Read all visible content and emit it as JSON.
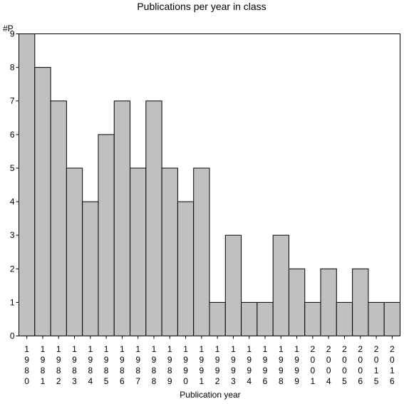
{
  "chart_data": {
    "type": "bar",
    "title": "Publications per year in class",
    "ylabel": "#P",
    "xlabel": "Publication year",
    "categories": [
      "1980",
      "1981",
      "1982",
      "1983",
      "1984",
      "1985",
      "1986",
      "1987",
      "1988",
      "1989",
      "1990",
      "1991",
      "1992",
      "1993",
      "1994",
      "1996",
      "1998",
      "1999",
      "2001",
      "2004",
      "2005",
      "2006",
      "2015",
      "2016"
    ],
    "values": [
      9,
      8,
      7,
      5,
      4,
      6,
      7,
      5,
      7,
      5,
      4,
      5,
      1,
      3,
      1,
      1,
      3,
      2,
      1,
      2,
      1,
      2,
      1,
      1
    ],
    "ylim": [
      0,
      9
    ],
    "yticks": [
      0,
      1,
      2,
      3,
      4,
      5,
      6,
      7,
      8,
      9
    ],
    "grid": false,
    "bar_color": "#c0c0c0"
  }
}
